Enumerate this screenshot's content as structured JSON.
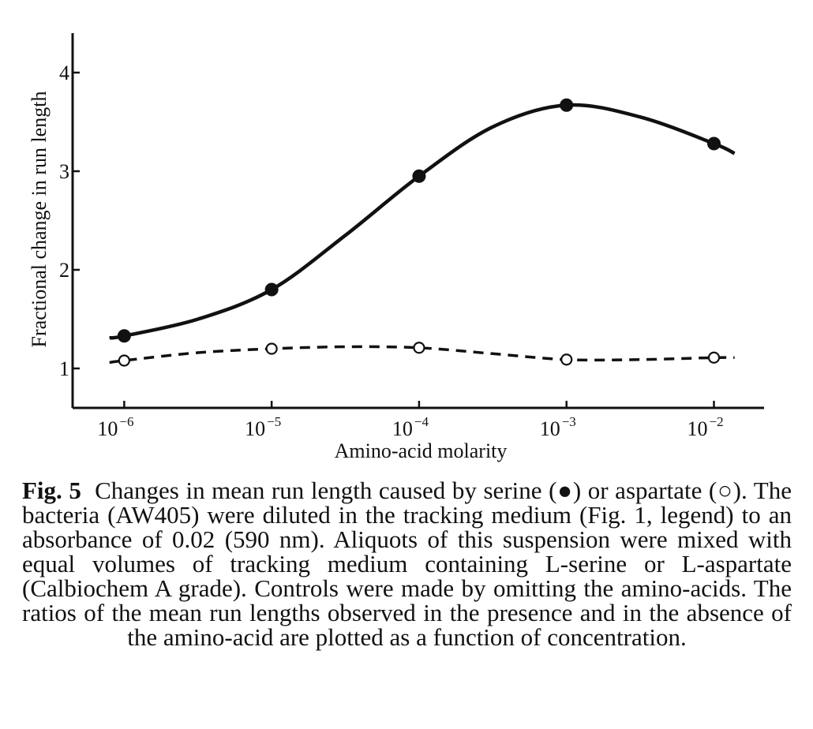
{
  "chart_data": {
    "type": "line",
    "title": "",
    "xlabel": "Amino-acid molarity",
    "ylabel": "Fractional change in run length",
    "x_scale": "log",
    "x_ticks": [
      {
        "base": "10",
        "exponent": "−6",
        "value": -6
      },
      {
        "base": "10",
        "exponent": "−5",
        "value": -5
      },
      {
        "base": "10",
        "exponent": "−4",
        "value": -4
      },
      {
        "base": "10",
        "exponent": "−3",
        "value": -3
      },
      {
        "base": "10",
        "exponent": "−2",
        "value": -2
      }
    ],
    "x_tick_labels_as_printed": [
      "10−6",
      "10−5",
      "10−4",
      "10 −3",
      "10 −2"
    ],
    "y_ticks": [
      "1",
      "2",
      "3",
      "4"
    ],
    "xlim_log10": [
      -6.35,
      -1.66
    ],
    "ylim": [
      0.6,
      4.4
    ],
    "series": [
      {
        "name": "serine",
        "marker": "filled-circle",
        "line_style": "solid",
        "log10_molarity": [
          -6,
          -5,
          -4,
          -3,
          -2
        ],
        "values": [
          1.33,
          1.8,
          2.95,
          3.67,
          3.28
        ],
        "curve_log10_molarity": [
          -6.1,
          -6,
          -5.5,
          -5,
          -4.5,
          -4,
          -3.5,
          -3,
          -2.5,
          -2,
          -1.86
        ],
        "curve_values": [
          1.31,
          1.33,
          1.5,
          1.8,
          2.35,
          2.95,
          3.45,
          3.67,
          3.55,
          3.28,
          3.18
        ]
      },
      {
        "name": "aspartate",
        "marker": "open-circle",
        "line_style": "dashed",
        "log10_molarity": [
          -6,
          -5,
          -4,
          -3,
          -2
        ],
        "values": [
          1.08,
          1.2,
          1.21,
          1.09,
          1.11
        ],
        "curve_log10_molarity": [
          -6.1,
          -6,
          -5.5,
          -5,
          -4.5,
          -4,
          -3.5,
          -3,
          -2.5,
          -2,
          -1.86
        ],
        "curve_values": [
          1.06,
          1.08,
          1.16,
          1.2,
          1.22,
          1.21,
          1.15,
          1.09,
          1.09,
          1.11,
          1.11
        ]
      }
    ],
    "colors": {
      "ink": "#111111",
      "background": "#ffffff"
    }
  },
  "caption": {
    "label": "Fig. 5",
    "text": "Changes in mean run length caused by serine (●) or aspartate (○). The bacteria (AW405) were diluted in the tracking medium (Fig. 1, legend) to an absorbance of 0.02 (590 nm). Aliquots of this suspension were mixed with equal volumes of tracking medium containing L-serine or L-aspartate (Calbiochem A grade). Controls were made by omitting the amino-acids. The ratios of the mean run lengths observed in the presence and in the absence of the amino-acid are plotted as a function of concentration."
  }
}
